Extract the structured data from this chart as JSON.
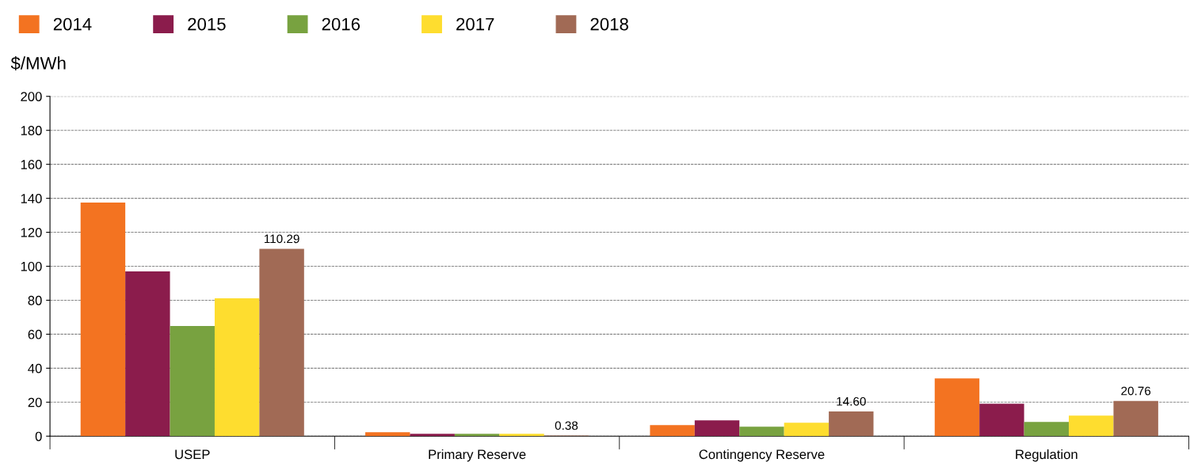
{
  "chart_data": {
    "type": "bar",
    "ylabel": "$/MWh",
    "categories": [
      "USEP",
      "Primary Reserve",
      "Contingency Reserve",
      "Regulation"
    ],
    "series": [
      {
        "name": "2014",
        "color": "#f37321",
        "values": [
          137.5,
          2.3,
          6.5,
          34.0
        ]
      },
      {
        "name": "2015",
        "color": "#8b1c4c",
        "values": [
          97.0,
          1.4,
          9.3,
          19.1
        ]
      },
      {
        "name": "2016",
        "color": "#78a240",
        "values": [
          64.8,
          1.4,
          5.6,
          8.4
        ]
      },
      {
        "name": "2017",
        "color": "#fedd2f",
        "values": [
          81.1,
          1.4,
          7.9,
          12.1
        ]
      },
      {
        "name": "2018",
        "color": "#a16a55",
        "values": [
          110.29,
          0.38,
          14.6,
          20.76
        ],
        "value_labels": [
          "110.29",
          "0.38",
          "14.60",
          "20.76"
        ]
      }
    ],
    "ylim": [
      0,
      200
    ],
    "yticks": [
      0,
      20,
      40,
      60,
      80,
      100,
      120,
      140,
      160,
      180,
      200
    ],
    "grid": "y",
    "legend": "top left"
  }
}
